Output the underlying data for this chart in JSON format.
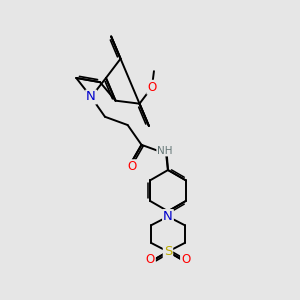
{
  "background_color": "#e6e6e6",
  "line_color": "#000000",
  "bond_width": 1.4,
  "figsize": [
    3.0,
    3.0
  ],
  "dpi": 100,
  "atom_colors": {
    "N": "#0000cc",
    "O": "#ff0000",
    "S": "#bbaa00",
    "H": "#667777",
    "C": "#000000"
  },
  "font_size": 8.5,
  "font_size_small": 7.5,
  "xlim": [
    0,
    10
  ],
  "ylim": [
    0,
    10
  ]
}
